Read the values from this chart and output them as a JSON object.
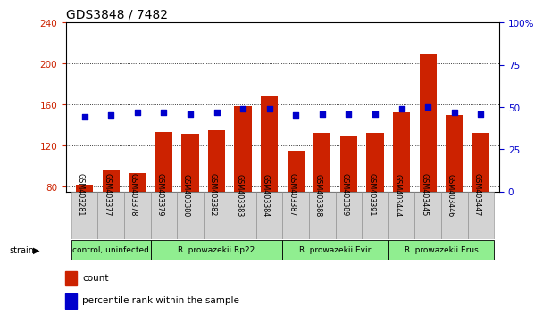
{
  "title": "GDS3848 / 7482",
  "samples": [
    "GSM403281",
    "GSM403377",
    "GSM403378",
    "GSM403379",
    "GSM403380",
    "GSM403382",
    "GSM403383",
    "GSM403384",
    "GSM403387",
    "GSM403388",
    "GSM403389",
    "GSM403391",
    "GSM403444",
    "GSM403445",
    "GSM403446",
    "GSM403447"
  ],
  "counts": [
    82,
    96,
    93,
    133,
    131,
    135,
    158,
    168,
    115,
    132,
    130,
    132,
    152,
    210,
    150,
    132
  ],
  "percentiles": [
    44,
    45,
    47,
    47,
    46,
    47,
    49,
    49,
    45,
    46,
    46,
    46,
    49,
    50,
    47,
    46
  ],
  "group_defs": [
    [
      0,
      2,
      "control, uninfected"
    ],
    [
      3,
      7,
      "R. prowazekii Rp22"
    ],
    [
      8,
      11,
      "R. prowazekii Evir"
    ],
    [
      12,
      15,
      "R. prowazekii Erus"
    ]
  ],
  "ylim_left": [
    75,
    240
  ],
  "ylim_right": [
    0,
    100
  ],
  "bar_color": "#CC2200",
  "dot_color": "#0000CC",
  "bar_width": 0.65,
  "background_color": "#ffffff",
  "left_yticks": [
    80,
    120,
    160,
    200,
    240
  ],
  "right_yticks": [
    0,
    25,
    50,
    75,
    100
  ],
  "right_yticklabels": [
    "0",
    "25",
    "50",
    "75",
    "100%"
  ]
}
